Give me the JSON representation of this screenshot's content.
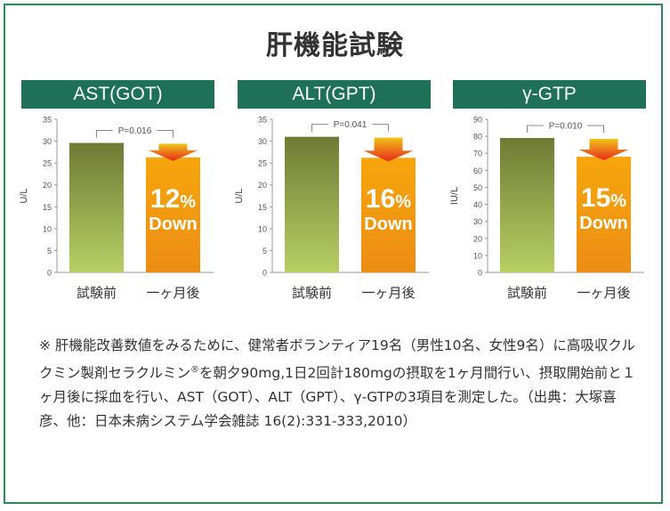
{
  "title": "肝機能試験",
  "colors": {
    "banner": "#1e7056",
    "frame": "#2e8b57",
    "before_bar_top": "#6f7a34",
    "before_bar_bottom": "#b8cf65",
    "after_bar_top": "#f6a60c",
    "after_bar_bottom": "#ec8d14",
    "arrow": "#e8281b"
  },
  "chart_data": [
    {
      "type": "bar",
      "title": "AST(GOT)",
      "categories": [
        "試験前",
        "一ヶ月後"
      ],
      "values": [
        29.6,
        26.3
      ],
      "ylabel": "U/L",
      "ylim": [
        0,
        35
      ],
      "yticks": [
        0,
        5,
        10,
        15,
        20,
        25,
        30,
        35
      ],
      "p_value": "P=0.016",
      "reduction": {
        "percent": "12",
        "unit": "%",
        "word": "Down"
      }
    },
    {
      "type": "bar",
      "title": "ALT(GPT)",
      "categories": [
        "試験前",
        "一ヶ月後"
      ],
      "values": [
        31,
        26.2
      ],
      "ylabel": "U/L",
      "ylim": [
        0,
        35
      ],
      "yticks": [
        0,
        5,
        10,
        15,
        20,
        25,
        30,
        35
      ],
      "p_value": "P=0.041",
      "reduction": {
        "percent": "16",
        "unit": "%",
        "word": "Down"
      }
    },
    {
      "type": "bar",
      "title": "γ-GTP",
      "categories": [
        "試験前",
        "一ヶ月後"
      ],
      "values": [
        79,
        68
      ],
      "ylabel": "IU/L",
      "ylim": [
        0,
        90
      ],
      "yticks": [
        0,
        10,
        20,
        30,
        40,
        50,
        60,
        70,
        80,
        90
      ],
      "p_value": "P=0.010",
      "reduction": {
        "percent": "15",
        "unit": "%",
        "word": "Down"
      }
    }
  ],
  "note": {
    "part1": "※ 肝機能改善数値をみるために、健常者ボランティア19名（男性10名、女性9名）に高吸収クルクミン製剤セラクルミン",
    "registered": "®",
    "part2": "を朝夕90mg,1日2回計180mgの摂取を1ヶ月間行い、摂取開始前と１ヶ月後に採血を行い、AST（GOT）、ALT（GPT）、γ-GTPの3項目を測定した。（出典：大塚喜彦、他：日本未病システム学会雑誌 16(2):331-333,2010）"
  }
}
